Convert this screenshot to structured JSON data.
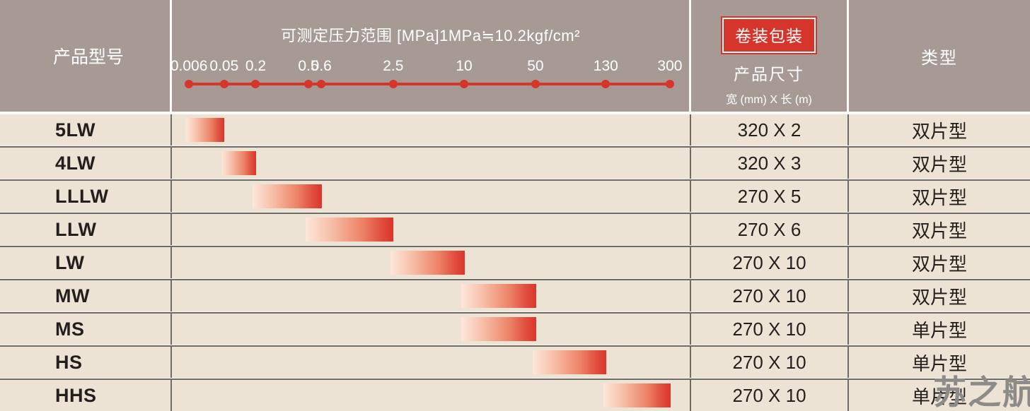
{
  "table": {
    "header": {
      "product_model": "产品型号",
      "pressure_title": "可测定压力范围 [MPa]1MPa≒10.2kgf/cm²",
      "packaging_badge": "卷装包装",
      "packaging_title": "产品尺寸",
      "packaging_subtitle": "宽 (mm) X 长 (m)",
      "type": "类型"
    },
    "rows": [
      {
        "model": "5LW",
        "range": [
          0.006,
          0.05
        ],
        "size": "320 X 2",
        "type": "双片型"
      },
      {
        "model": "4LW",
        "range": [
          0.05,
          0.2
        ],
        "size": "320 X 3",
        "type": "双片型"
      },
      {
        "model": "LLLW",
        "range": [
          0.2,
          0.6
        ],
        "size": "270 X 5",
        "type": "双片型"
      },
      {
        "model": "LLW",
        "range": [
          0.5,
          2.5
        ],
        "size": "270 X 6",
        "type": "双片型"
      },
      {
        "model": "LW",
        "range": [
          2.5,
          10
        ],
        "size": "270 X 10",
        "type": "双片型"
      },
      {
        "model": "MW",
        "range": [
          10,
          50
        ],
        "size": "270 X 10",
        "type": "双片型"
      },
      {
        "model": "MS",
        "range": [
          10,
          50
        ],
        "size": "270 X 10",
        "type": "单片型"
      },
      {
        "model": "HS",
        "range": [
          50,
          130
        ],
        "size": "270 X 10",
        "type": "单片型"
      },
      {
        "model": "HHS",
        "range": [
          130,
          300
        ],
        "size": "270 X 10",
        "type": "单片型"
      }
    ]
  },
  "watermark": "苏之航",
  "colors": {
    "header_bg": "#a79a95",
    "row_bg": "#ece3d5",
    "grid_line": "#6f6c68",
    "accent_red": "#d6352b",
    "header_text": "#ffffff",
    "body_text": "#241f1c",
    "watermark_color": "#8d8b88"
  },
  "chart_data": {
    "type": "bar",
    "variant": "horizontal-range",
    "title": "可测定压力范围 [MPa]1MPa≒10.2kgf/cm²",
    "unit": "MPa",
    "conversion_note": "1MPa≒10.2kgf/cm²",
    "categories": [
      "5LW",
      "4LW",
      "LLLW",
      "LLW",
      "LW",
      "MW",
      "MS",
      "HS",
      "HHS"
    ],
    "series": [
      {
        "name": "可测定压力范围 [MPa]",
        "ranges": [
          [
            0.006,
            0.05
          ],
          [
            0.05,
            0.2
          ],
          [
            0.2,
            0.6
          ],
          [
            0.5,
            2.5
          ],
          [
            2.5,
            10
          ],
          [
            10,
            50
          ],
          [
            10,
            50
          ],
          [
            50,
            130
          ],
          [
            130,
            300
          ]
        ]
      }
    ],
    "axis": {
      "ticks": [
        0.006,
        0.05,
        0.2,
        0.5,
        0.6,
        2.5,
        10,
        50,
        130,
        300
      ],
      "tick_labels": [
        "0.006",
        "0.05",
        "0.2",
        "0.5",
        "0.6",
        "2.5",
        "10",
        "50",
        "130",
        "300"
      ],
      "tick_positions_pct": [
        3.3,
        10.1,
        16.2,
        26.4,
        28.9,
        42.8,
        56.5,
        70.3,
        83.9,
        96.3
      ],
      "range": [
        0.006,
        300
      ],
      "scale": "non-linear",
      "grid": false,
      "legend": false
    }
  }
}
